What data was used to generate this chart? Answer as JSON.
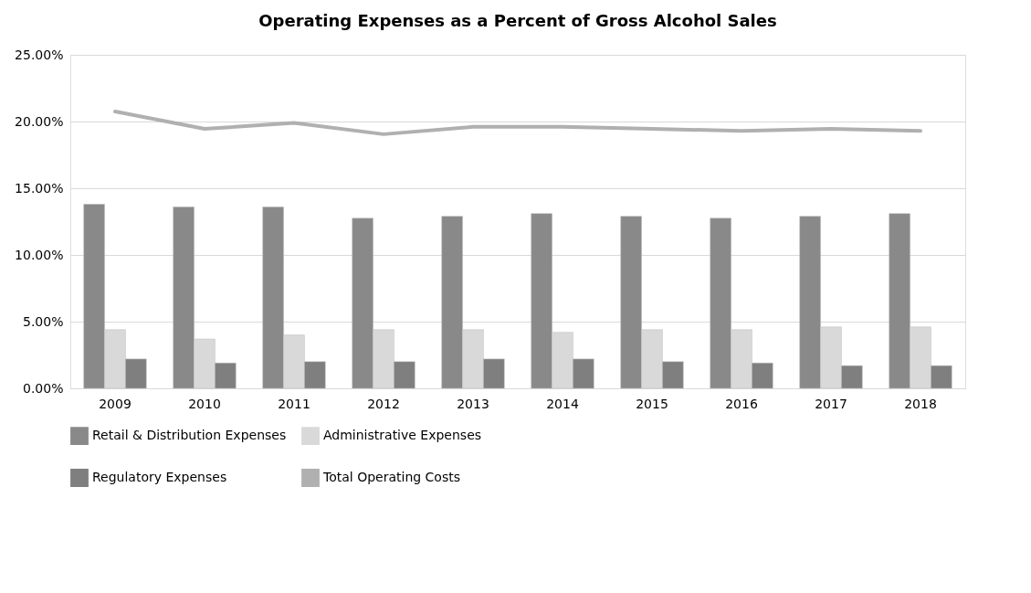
{
  "chart_data": {
    "type": "bar",
    "title": "Operating Expenses as a Percent of Gross Alcohol Sales",
    "categories": [
      "2009",
      "2010",
      "2011",
      "2012",
      "2013",
      "2014",
      "2015",
      "2016",
      "2017",
      "2018"
    ],
    "series": [
      {
        "name": "Retail & Distribution Expenses",
        "color": "#898989",
        "values": [
          13.8,
          13.6,
          13.6,
          12.75,
          12.9,
          13.1,
          12.9,
          12.75,
          12.9,
          13.1
        ]
      },
      {
        "name": "Administrative Expenses",
        "color": "#d9d9d9",
        "values": [
          4.4,
          3.7,
          4.0,
          4.4,
          4.4,
          4.2,
          4.4,
          4.4,
          4.6,
          4.6
        ]
      },
      {
        "name": "Regulatory Expenses",
        "color": "#7f7f7f",
        "values": [
          2.2,
          1.9,
          2.0,
          2.0,
          2.2,
          2.2,
          2.0,
          1.9,
          1.7,
          1.7
        ]
      },
      {
        "name": "Total Operating Costs",
        "color": "#b0b0b0",
        "type": "line",
        "values": [
          20.75,
          19.45,
          19.9,
          19.05,
          19.6,
          19.6,
          19.45,
          19.3,
          19.45,
          19.3
        ]
      }
    ],
    "ylim": [
      0,
      25
    ],
    "yticks": [
      {
        "value": 0,
        "label": "0.00%"
      },
      {
        "value": 5,
        "label": "5.00%"
      },
      {
        "value": 10,
        "label": "10.00%"
      },
      {
        "value": 15,
        "label": "15.00%"
      },
      {
        "value": 20,
        "label": "20.00%"
      },
      {
        "value": 25,
        "label": "25.00%"
      }
    ],
    "grid": "y",
    "legend": "bottom",
    "marker": "none",
    "line_style": "solid"
  }
}
